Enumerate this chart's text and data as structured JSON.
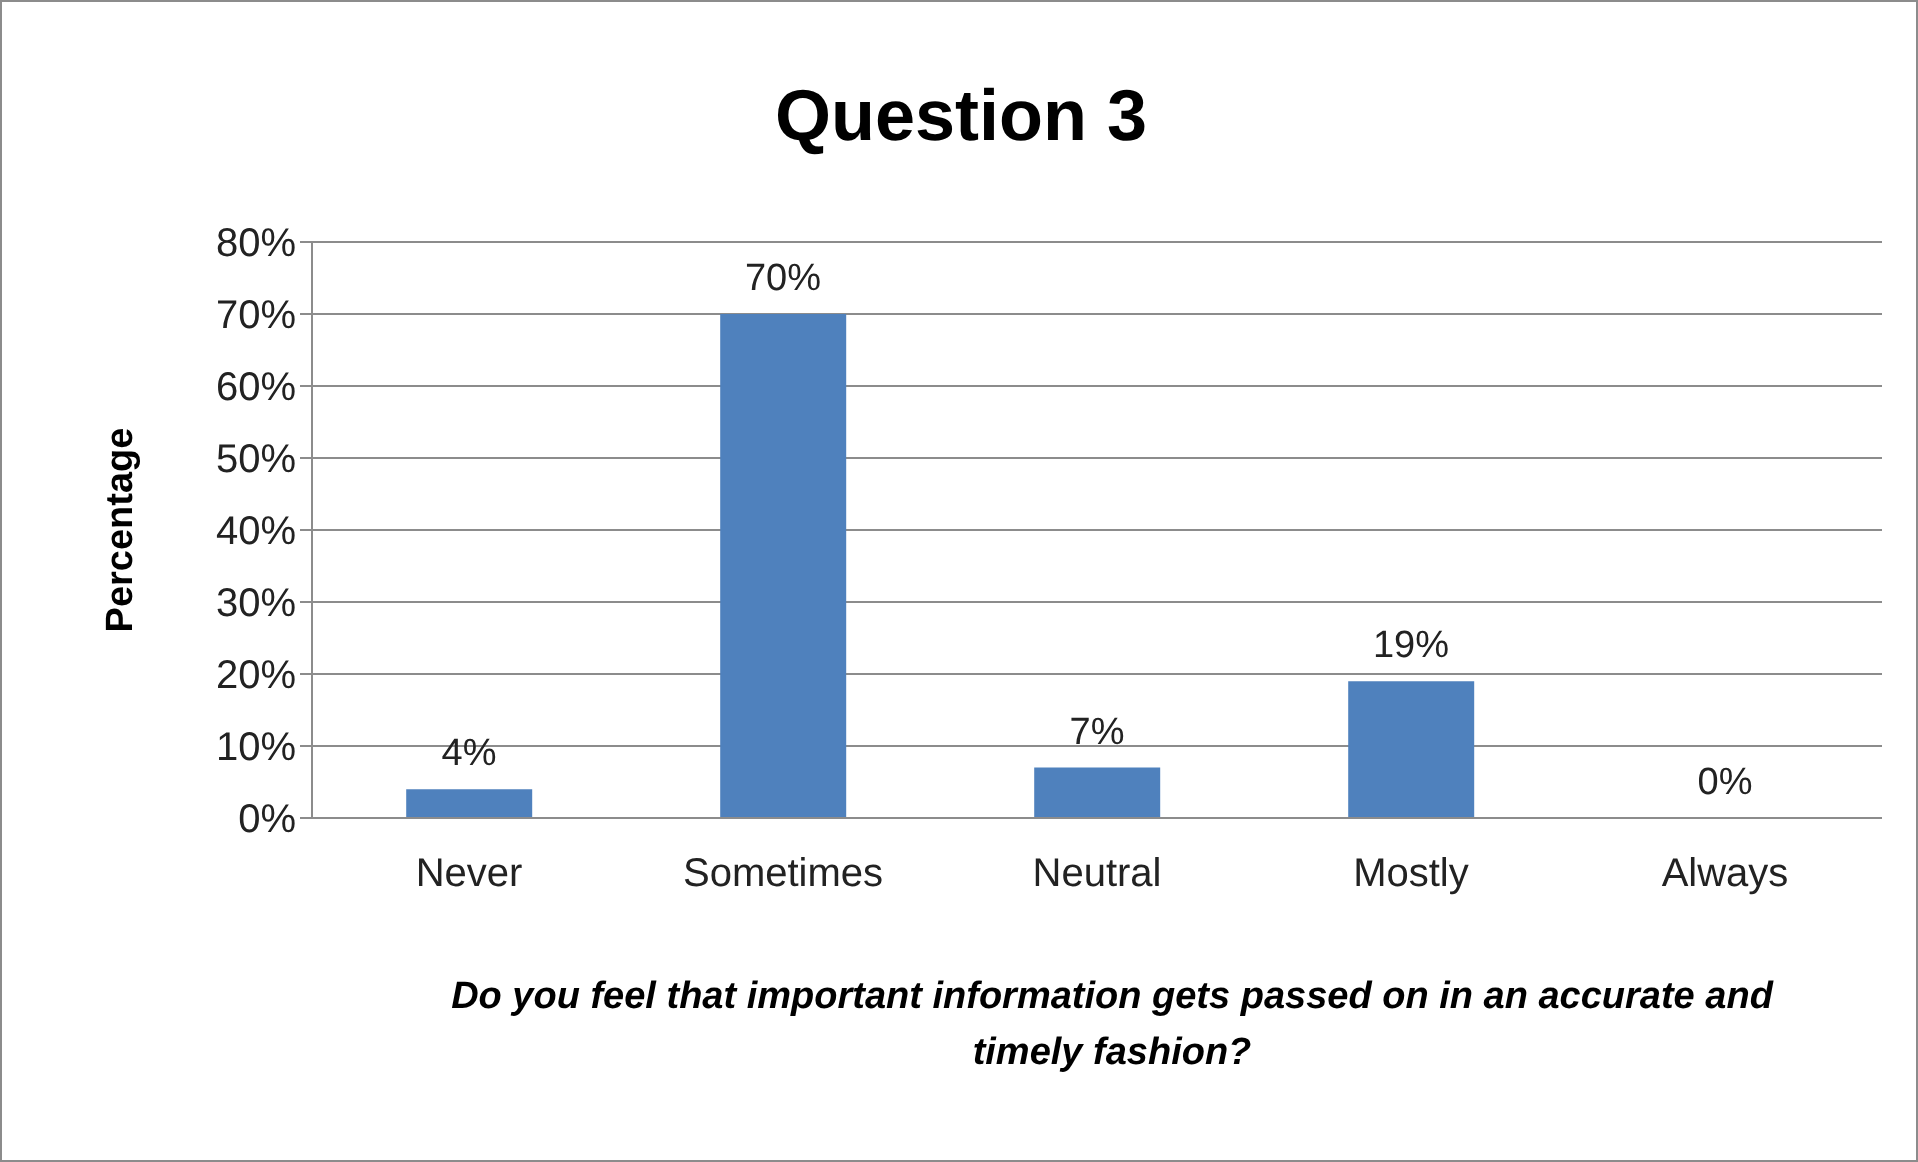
{
  "chart_data": {
    "type": "bar",
    "title": "Question 3",
    "xlabel": "Do you feel that important information gets passed on in an accurate and timely fashion?",
    "ylabel": "Percentage",
    "categories": [
      "Never",
      "Sometimes",
      "Neutral",
      "Mostly",
      "Always"
    ],
    "values": [
      4,
      70,
      7,
      19,
      0
    ],
    "value_labels": [
      "4%",
      "70%",
      "7%",
      "19%",
      "0%"
    ],
    "color": "#4f81bd",
    "ylim": [
      0,
      80
    ],
    "yticks": [
      {
        "value": 0,
        "label": "0%"
      },
      {
        "value": 10,
        "label": "10%"
      },
      {
        "value": 20,
        "label": "20%"
      },
      {
        "value": 30,
        "label": "30%"
      },
      {
        "value": 40,
        "label": "40%"
      },
      {
        "value": 50,
        "label": "50%"
      },
      {
        "value": 60,
        "label": "60%"
      },
      {
        "value": 70,
        "label": "70%"
      },
      {
        "value": 80,
        "label": "80%"
      }
    ],
    "grid": "y",
    "legend": false
  }
}
